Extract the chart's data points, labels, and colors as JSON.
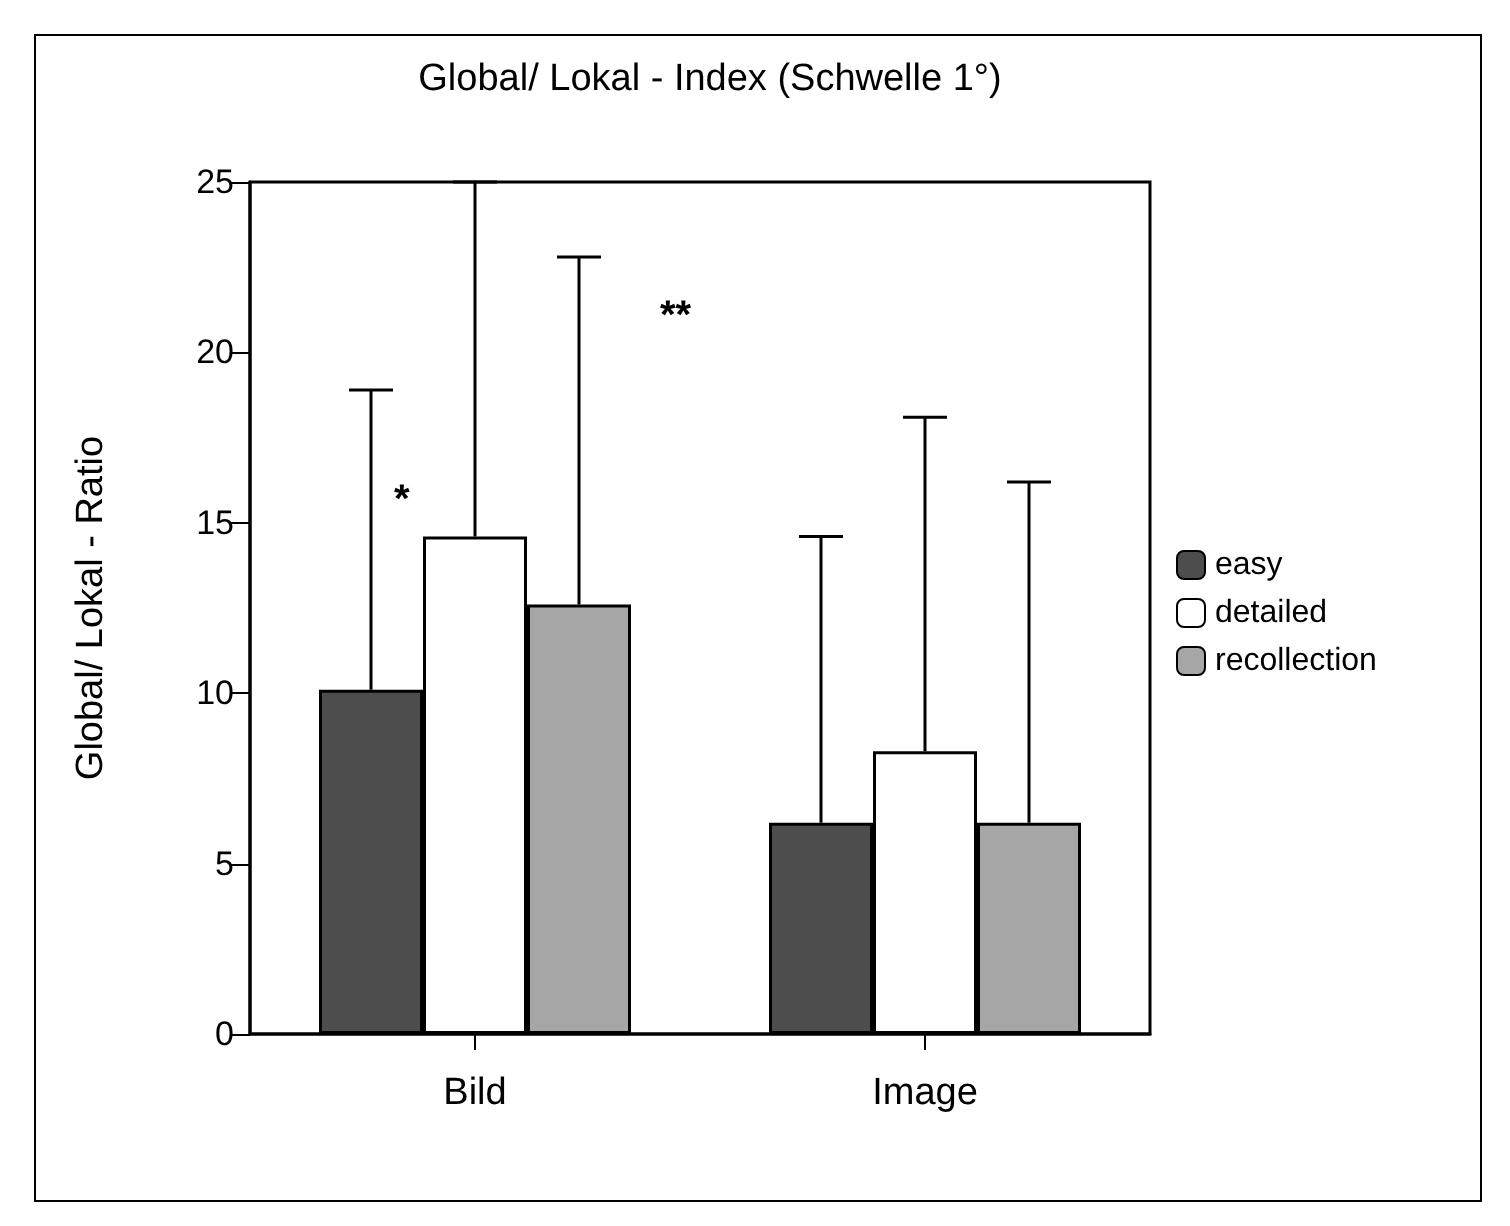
{
  "chart_data": {
    "type": "bar",
    "title": "Global/ Lokal - Index (Schwelle 1°)",
    "ylabel": "Global/ Lokal - Ratio",
    "categories": [
      "Bild",
      "Image"
    ],
    "series": [
      {
        "name": "easy",
        "color": "#4d4d4d",
        "values": [
          10.1,
          6.2
        ],
        "errors": [
          [
            10.1,
            18.9
          ],
          [
            6.2,
            14.6
          ]
        ]
      },
      {
        "name": "detailed",
        "color": "#ffffff",
        "values": [
          14.6,
          8.3
        ],
        "errors": [
          [
            14.6,
            25.0
          ],
          [
            8.3,
            18.1
          ]
        ]
      },
      {
        "name": "recollection",
        "color": "#a6a6a6",
        "values": [
          12.6,
          6.2
        ],
        "errors": [
          [
            12.6,
            22.8
          ],
          [
            6.2,
            16.2
          ]
        ]
      }
    ],
    "ylim": [
      0,
      25
    ],
    "yticks": [
      0,
      5,
      10,
      15,
      20,
      25
    ],
    "grid": false,
    "legend": "right",
    "annotations": [
      "*",
      "**"
    ]
  }
}
